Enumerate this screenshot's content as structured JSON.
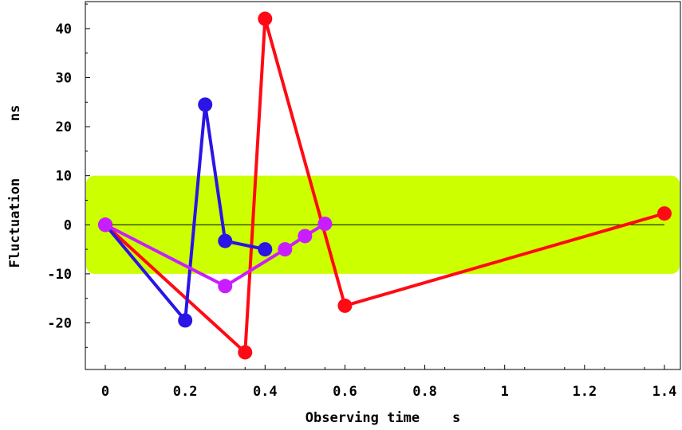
{
  "chart_data": {
    "type": "line",
    "xlabel": "Observing time    s",
    "ylabel": "Fluctuation       ns",
    "xlim": [
      -0.05,
      1.44
    ],
    "ylim": [
      -29.5,
      45.5
    ],
    "x_ticks": [
      0,
      0.2,
      0.4,
      0.6,
      0.8,
      1,
      1.2,
      1.4
    ],
    "x_tick_labels": [
      "0",
      "0.2",
      "0.4",
      "0.6",
      "0.8",
      "1",
      "1.2",
      "1.4"
    ],
    "y_ticks": [
      -20,
      -10,
      0,
      10,
      20,
      30,
      40
    ],
    "y_tick_labels": [
      "-20",
      "-10",
      "0",
      "10",
      "20",
      "30",
      "40"
    ],
    "band": {
      "y_min": -10,
      "y_max": 10,
      "color": "#ccff00"
    },
    "reference_line": {
      "y": 0,
      "x_min": 0,
      "x_max": 1.4,
      "color": "#000000"
    },
    "series": [
      {
        "color": "#ff0a14",
        "points": [
          [
            0,
            0
          ],
          [
            0.35,
            -26
          ],
          [
            0.4,
            42
          ],
          [
            0.6,
            -16.5
          ],
          [
            1.4,
            2.3
          ]
        ]
      },
      {
        "color": "#2a14e6",
        "points": [
          [
            0,
            0
          ],
          [
            0.2,
            -19.5
          ],
          [
            0.25,
            24.5
          ],
          [
            0.3,
            -3.3
          ],
          [
            0.4,
            -5
          ]
        ]
      },
      {
        "color": "#c81eff",
        "points": [
          [
            0,
            0
          ],
          [
            0.3,
            -12.5
          ],
          [
            0.45,
            -5
          ],
          [
            0.5,
            -2.3
          ],
          [
            0.55,
            0.2
          ]
        ]
      }
    ],
    "grid": false,
    "legend": "none"
  }
}
